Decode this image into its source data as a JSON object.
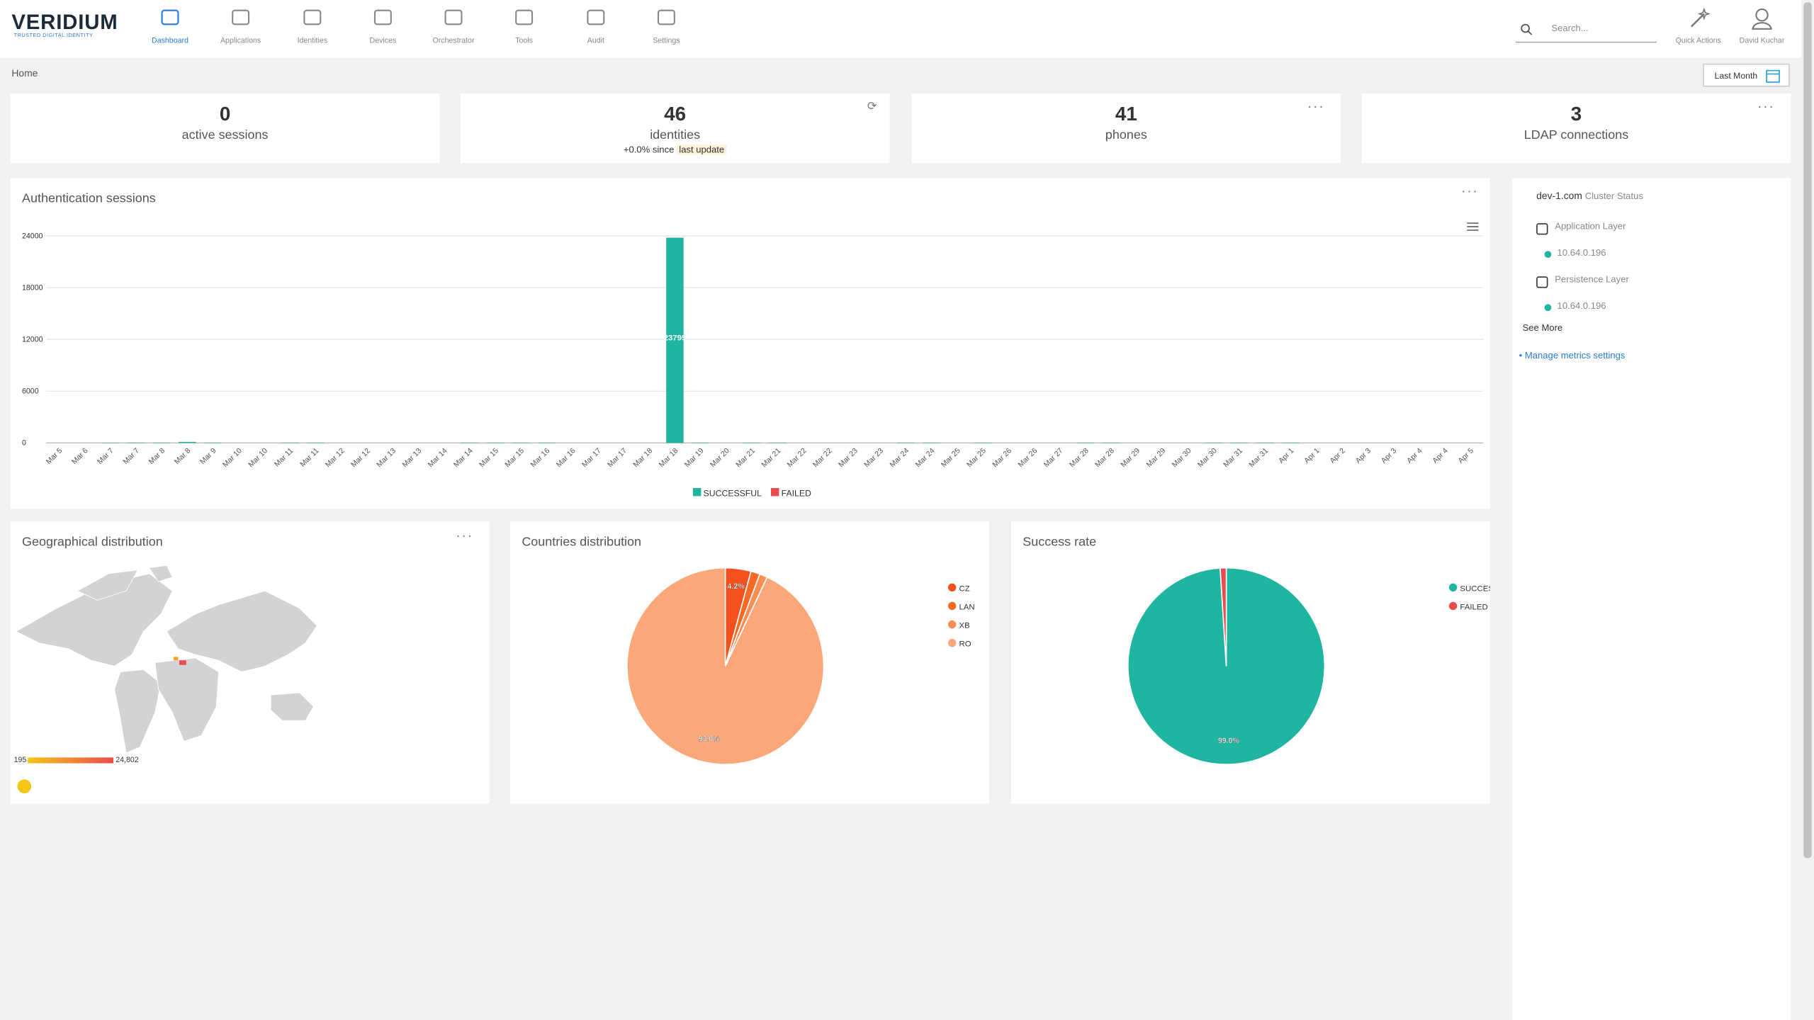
{
  "header": {
    "logo": "VERIDIUM",
    "tagline": "TRUSTED DIGITAL IDENTITY",
    "nav": [
      "Dashboard",
      "Applications",
      "Identities",
      "Devices",
      "Orchestrator",
      "Tools",
      "Audit",
      "Settings"
    ],
    "search_placeholder": "Search...",
    "quick_actions": "Quick Actions",
    "user": "David Kuchar"
  },
  "breadcrumb": "Home",
  "date_range": "Last Month",
  "stats": [
    {
      "value": 0,
      "label": "active sessions"
    },
    {
      "value": 46,
      "label": "identities",
      "change": "+0.0% since",
      "change_link": "last update"
    },
    {
      "value": 41,
      "label": "phones"
    },
    {
      "value": 3,
      "label": "LDAP connections"
    }
  ],
  "cluster": {
    "domain": "dev-1.com",
    "title": "Cluster Status",
    "layers": [
      {
        "name": "Application Layer",
        "nodes": [
          "10.64.0.196"
        ]
      },
      {
        "name": "Persistence Layer",
        "nodes": [
          "10.64.0.196"
        ]
      }
    ],
    "see_more": "See More",
    "manage": "Manage metrics settings"
  },
  "geo": {
    "title": "Geographical distribution",
    "min_label": "195",
    "max_label": "24,802"
  },
  "chart_data": [
    {
      "type": "bar",
      "title": "Authentication sessions",
      "categories": [
        "Mar 5",
        "Mar 6",
        "Mar 7",
        "Mar 7",
        "Mar 8",
        "Mar 8",
        "Mar 9",
        "Mar 10",
        "Mar 10",
        "Mar 11",
        "Mar 11",
        "Mar 12",
        "Mar 12",
        "Mar 13",
        "Mar 13",
        "Mar 14",
        "Mar 14",
        "Mar 15",
        "Mar 15",
        "Mar 16",
        "Mar 16",
        "Mar 17",
        "Mar 17",
        "Mar 18",
        "Mar 18",
        "Mar 19",
        "Mar 20",
        "Mar 21",
        "Mar 21",
        "Mar 22",
        "Mar 22",
        "Mar 23",
        "Mar 23",
        "Mar 24",
        "Mar 24",
        "Mar 25",
        "Mar 25",
        "Mar 26",
        "Mar 26",
        "Mar 27",
        "Mar 28",
        "Mar 28",
        "Mar 29",
        "Mar 29",
        "Mar 30",
        "Mar 30",
        "Mar 31",
        "Mar 31",
        "Apr 1",
        "Apr 1",
        "Apr 2",
        "Apr 3",
        "Apr 3",
        "Apr 4",
        "Apr 4",
        "Apr 5"
      ],
      "series": [
        {
          "name": "SUCCESSFUL",
          "color": "#20b5a0",
          "values": [
            0,
            0,
            30,
            40,
            40,
            120,
            40,
            0,
            0,
            40,
            40,
            0,
            0,
            0,
            0,
            0,
            40,
            40,
            40,
            40,
            0,
            0,
            0,
            0,
            23795,
            40,
            0,
            40,
            40,
            0,
            0,
            0,
            0,
            40,
            40,
            0,
            40,
            0,
            0,
            0,
            40,
            40,
            0,
            0,
            0,
            40,
            40,
            40,
            40,
            0,
            0,
            0,
            0,
            0,
            0,
            0
          ],
          "value_labels": [
            null,
            null,
            null,
            null,
            null,
            null,
            null,
            null,
            null,
            null,
            null,
            null,
            null,
            null,
            null,
            null,
            null,
            null,
            null,
            null,
            null,
            null,
            null,
            null,
            "23795",
            null,
            null,
            null,
            null,
            null,
            null,
            null,
            null,
            null,
            null,
            null,
            null,
            null,
            null,
            null,
            null,
            null,
            null,
            null,
            null,
            null,
            null,
            null,
            null,
            null,
            null,
            null,
            null,
            null,
            null,
            null
          ]
        },
        {
          "name": "FAILED",
          "color": "#e84c4c",
          "values": [
            0,
            0,
            0,
            0,
            0,
            0,
            0,
            0,
            0,
            0,
            0,
            0,
            0,
            0,
            0,
            0,
            0,
            0,
            0,
            0,
            0,
            0,
            0,
            0,
            0,
            0,
            0,
            0,
            0,
            0,
            0,
            0,
            0,
            0,
            0,
            0,
            0,
            0,
            0,
            0,
            0,
            0,
            0,
            0,
            0,
            0,
            0,
            0,
            0,
            0,
            0,
            0,
            0,
            0,
            0,
            0
          ]
        }
      ],
      "ylim": [
        0,
        24000
      ],
      "yticks": [
        0,
        6000,
        12000,
        18000,
        24000
      ],
      "grid": true,
      "stacked": true,
      "legend": "bottom"
    },
    {
      "type": "pie",
      "title": "Countries distribution",
      "categories": [
        "CZ",
        "LAN",
        "XB",
        "RO"
      ],
      "values": [
        4.2,
        1.5,
        1.3,
        93.0
      ],
      "value_labels": [
        "4.2%",
        null,
        null,
        "93.0%"
      ],
      "colors": [
        "#f4511e",
        "#f76a26",
        "#f98e55",
        "#fba77a"
      ],
      "legend": "right"
    },
    {
      "type": "pie",
      "title": "Success rate",
      "categories": [
        "SUCCESSFUL",
        "FAILED"
      ],
      "values": [
        99.0,
        1.0
      ],
      "value_labels": [
        "99.0%",
        null
      ],
      "colors": [
        "#20b5a0",
        "#e84c4c"
      ],
      "legend": "right"
    }
  ]
}
